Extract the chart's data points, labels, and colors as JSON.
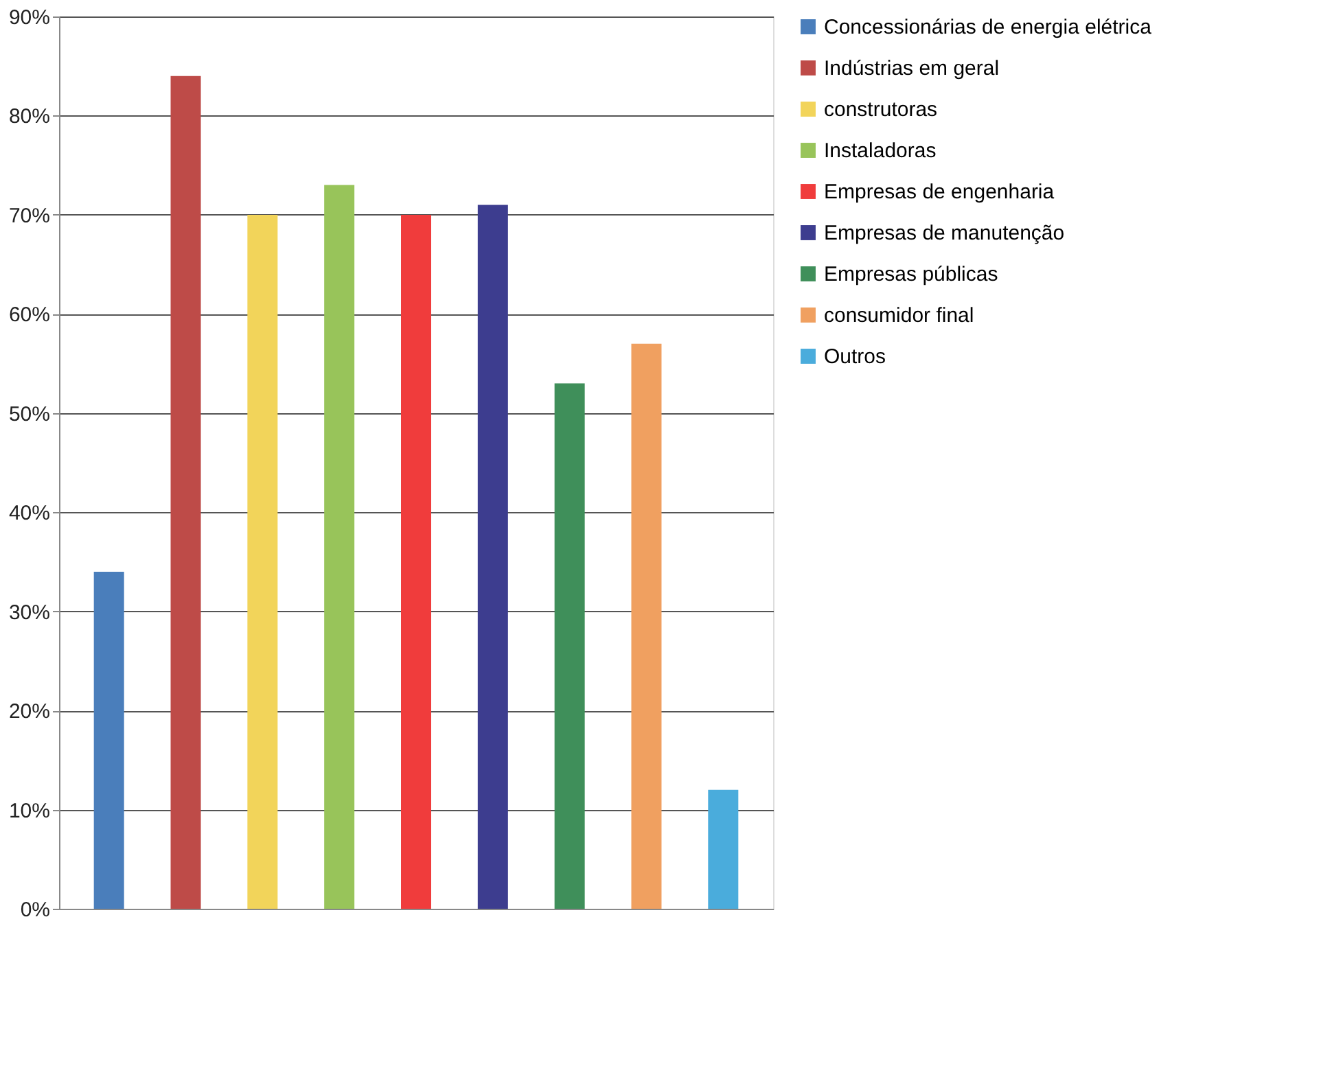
{
  "chart_data": {
    "type": "bar",
    "categories": [
      null,
      null,
      null,
      null,
      null,
      null,
      null,
      null,
      null
    ],
    "ylim": [
      0,
      90
    ],
    "yticks": [
      {
        "value": 0,
        "label": "0%"
      },
      {
        "value": 10,
        "label": "10%"
      },
      {
        "value": 20,
        "label": "20%"
      },
      {
        "value": 30,
        "label": "30%"
      },
      {
        "value": 40,
        "label": "40%"
      },
      {
        "value": 50,
        "label": "50%"
      },
      {
        "value": 60,
        "label": "60%"
      },
      {
        "value": 70,
        "label": "70%"
      },
      {
        "value": 80,
        "label": "80%"
      },
      {
        "value": 90,
        "label": "90%"
      }
    ],
    "grid": "y",
    "legend": "right",
    "tick_labels": "y",
    "series": [
      {
        "name": "Concessionárias de energia elétrica",
        "color": "#4a7ebb",
        "values": [
          34,
          null,
          null,
          null,
          null,
          null,
          null,
          null,
          null
        ]
      },
      {
        "name": "Indústrias em geral",
        "color": "#be4b48",
        "values": [
          null,
          84,
          null,
          null,
          null,
          null,
          null,
          null,
          null
        ]
      },
      {
        "name": "construtoras",
        "color": "#f2d45a",
        "values": [
          null,
          null,
          70,
          null,
          null,
          null,
          null,
          null,
          null
        ]
      },
      {
        "name": "Instaladoras",
        "color": "#98c45a",
        "values": [
          null,
          null,
          null,
          73,
          null,
          null,
          null,
          null,
          null
        ]
      },
      {
        "name": "Empresas de engenharia",
        "color": "#f03c3c",
        "values": [
          null,
          null,
          null,
          null,
          70,
          null,
          null,
          null,
          null
        ]
      },
      {
        "name": "Empresas de manutenção",
        "color": "#3d3d8f",
        "values": [
          null,
          null,
          null,
          null,
          null,
          71,
          null,
          null,
          null
        ]
      },
      {
        "name": "Empresas públicas",
        "color": "#3f8f5a",
        "values": [
          null,
          null,
          null,
          null,
          null,
          null,
          53,
          null,
          null
        ]
      },
      {
        "name": "consumidor final",
        "color": "#f0a060",
        "values": [
          null,
          null,
          null,
          null,
          null,
          null,
          null,
          57,
          null
        ]
      },
      {
        "name": "Outros",
        "color": "#4aacdc",
        "values": [
          null,
          null,
          null,
          null,
          null,
          null,
          null,
          null,
          12
        ]
      }
    ]
  }
}
